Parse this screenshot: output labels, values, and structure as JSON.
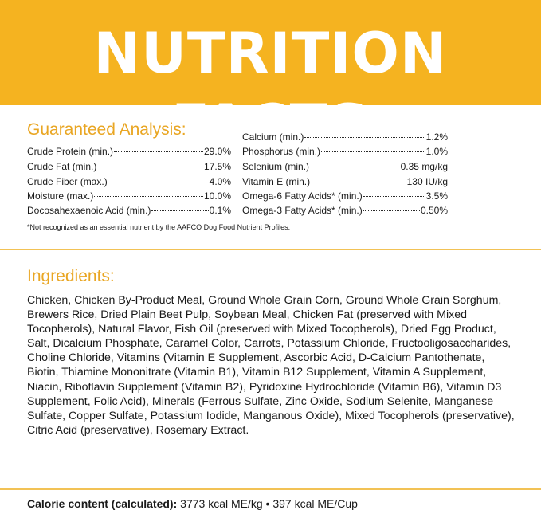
{
  "title": "NUTRITION FACTS",
  "colors": {
    "banner": "#f5b320",
    "heading": "#e9a623",
    "divider": "#f2c255"
  },
  "guaranteed_analysis": {
    "heading": "Guaranteed Analysis:",
    "left_rows": [
      {
        "label": "Crude Protein (min.)",
        "value": "29.0%"
      },
      {
        "label": "Crude Fat (min.)",
        "value": "17.5%"
      },
      {
        "label": "Crude Fiber (max.)",
        "value": "4.0%"
      },
      {
        "label": "Moisture (max.)",
        "value": "10.0%"
      },
      {
        "label": "Docosahexaenoic Acid (min.)",
        "value": "0.1%"
      }
    ],
    "right_rows": [
      {
        "label": "Calcium (min.)",
        "value": "1.2%"
      },
      {
        "label": "Phosphorus (min.)",
        "value": "1.0%"
      },
      {
        "label": "Selenium (min.)",
        "value": "0.35 mg/kg"
      },
      {
        "label": "Vitamin E (min.)",
        "value": "130 IU/kg"
      },
      {
        "label": "Omega-6 Fatty Acids* (min.)",
        "value": "3.5%"
      },
      {
        "label": "Omega-3 Fatty Acids* (min.)",
        "value": "0.50%"
      }
    ],
    "footnote": "*Not recognized as an essential nutrient by the AAFCO Dog Food Nutrient Profiles."
  },
  "ingredients": {
    "heading": "Ingredients:",
    "text": "Chicken, Chicken By-Product Meal, Ground Whole Grain Corn, Ground Whole Grain Sorghum, Brewers Rice, Dried Plain Beet Pulp, Soybean Meal, Chicken Fat (preserved with Mixed Tocopherols), Natural Flavor, Fish Oil (preserved with Mixed Tocopherols), Dried Egg Product, Salt, Dicalcium Phosphate, Caramel Color, Carrots, Potassium Chloride, Fructooligosaccharides, Choline Chloride, Vitamins (Vitamin E Supplement, Ascorbic Acid, D-Calcium Pantothenate, Biotin, Thiamine Mononitrate (Vitamin B1), Vitamin B12 Supplement, Vitamin A Supplement, Niacin, Riboflavin Supplement (Vitamin B2), Pyridoxine Hydrochloride (Vitamin B6), Vitamin D3 Supplement, Folic Acid), Minerals (Ferrous Sulfate, Zinc Oxide, Sodium Selenite, Manganese Sulfate, Copper Sulfate, Potassium Iodide, Manganous Oxide), Mixed Tocopherols (preservative), Citric Acid (preservative), Rosemary Extract."
  },
  "calorie": {
    "label": "Calorie content (calculated):",
    "value": "3773 kcal ME/kg • 397 kcal ME/Cup"
  }
}
